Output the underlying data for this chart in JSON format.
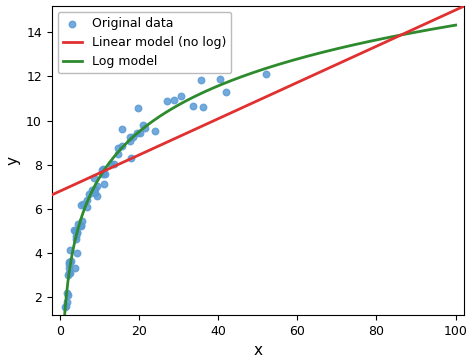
{
  "title": "",
  "xlabel": "x",
  "ylabel": "y",
  "xlim": [
    -2,
    102
  ],
  "ylim": [
    1.2,
    15.2
  ],
  "scatter_color": "#5b9bd5",
  "scatter_size": 22,
  "linear_color": "#e03030",
  "log_color": "#2d8a2d",
  "linear_label": "Linear model (no log)",
  "log_label": "Log model",
  "scatter_label": "Original data",
  "log_a": 3.0,
  "log_b": 0.5,
  "linear_slope": 0.082,
  "linear_intercept": 6.8,
  "seed": 42,
  "line_width": 2.0,
  "legend_fontsize": 9,
  "axis_fontsize": 11,
  "tick_fontsize": 9,
  "yticks": [
    2,
    4,
    6,
    8,
    10,
    12,
    14
  ],
  "xticks": [
    0,
    20,
    40,
    60,
    80,
    100
  ]
}
